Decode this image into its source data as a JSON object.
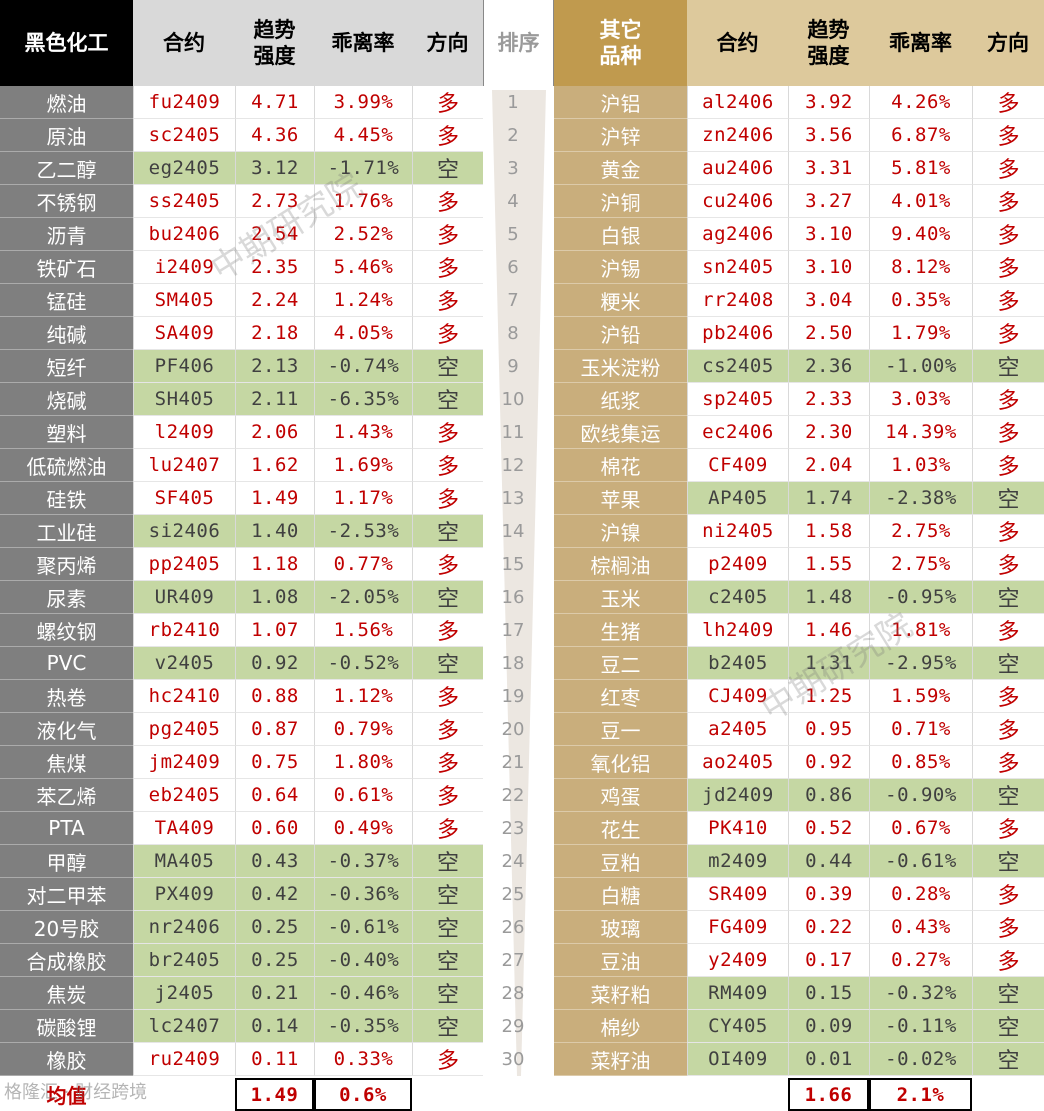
{
  "headers": {
    "left_title": "黑色化工",
    "contract": "合约",
    "trend": "趋势\n强度",
    "deviation": "乖离率",
    "direction": "方向",
    "rank": "排序",
    "right_title": "其它\n品种",
    "contract_r": "合约",
    "trend_r": "趋势\n强度",
    "deviation_r": "乖离率",
    "direction_r": "方向"
  },
  "colors": {
    "left_header_bg": "#000000",
    "left_name_bg": "#7f7f7f",
    "right_header_bg": "#c09a4e",
    "right_name_bg": "#c9ae7c",
    "short_bg": "#c5d7a3",
    "text_red": "#c00000"
  },
  "ranks": [
    "1",
    "2",
    "3",
    "4",
    "5",
    "6",
    "7",
    "8",
    "9",
    "10",
    "11",
    "12",
    "13",
    "14",
    "15",
    "16",
    "17",
    "18",
    "19",
    "20",
    "21",
    "22",
    "23",
    "24",
    "25",
    "26",
    "27",
    "28",
    "29",
    "30"
  ],
  "left_rows": [
    {
      "name": "燃油",
      "contract": "fu2409",
      "trend": "4.71",
      "dev": "3.99%",
      "dir": "多"
    },
    {
      "name": "原油",
      "contract": "sc2405",
      "trend": "4.36",
      "dev": "4.45%",
      "dir": "多"
    },
    {
      "name": "乙二醇",
      "contract": "eg2405",
      "trend": "3.12",
      "dev": "-1.71%",
      "dir": "空"
    },
    {
      "name": "不锈钢",
      "contract": "ss2405",
      "trend": "2.73",
      "dev": "1.76%",
      "dir": "多"
    },
    {
      "name": "沥青",
      "contract": "bu2406",
      "trend": "2.54",
      "dev": "2.52%",
      "dir": "多"
    },
    {
      "name": "铁矿石",
      "contract": "i2409",
      "trend": "2.35",
      "dev": "5.46%",
      "dir": "多"
    },
    {
      "name": "锰硅",
      "contract": "SM405",
      "trend": "2.24",
      "dev": "1.24%",
      "dir": "多"
    },
    {
      "name": "纯碱",
      "contract": "SA409",
      "trend": "2.18",
      "dev": "4.05%",
      "dir": "多"
    },
    {
      "name": "短纤",
      "contract": "PF406",
      "trend": "2.13",
      "dev": "-0.74%",
      "dir": "空"
    },
    {
      "name": "烧碱",
      "contract": "SH405",
      "trend": "2.11",
      "dev": "-6.35%",
      "dir": "空"
    },
    {
      "name": "塑料",
      "contract": "l2409",
      "trend": "2.06",
      "dev": "1.43%",
      "dir": "多"
    },
    {
      "name": "低硫燃油",
      "contract": "lu2407",
      "trend": "1.62",
      "dev": "1.69%",
      "dir": "多"
    },
    {
      "name": "硅铁",
      "contract": "SF405",
      "trend": "1.49",
      "dev": "1.17%",
      "dir": "多"
    },
    {
      "name": "工业硅",
      "contract": "si2406",
      "trend": "1.40",
      "dev": "-2.53%",
      "dir": "空"
    },
    {
      "name": "聚丙烯",
      "contract": "pp2405",
      "trend": "1.18",
      "dev": "0.77%",
      "dir": "多"
    },
    {
      "name": "尿素",
      "contract": "UR409",
      "trend": "1.08",
      "dev": "-2.05%",
      "dir": "空"
    },
    {
      "name": "螺纹钢",
      "contract": "rb2410",
      "trend": "1.07",
      "dev": "1.56%",
      "dir": "多"
    },
    {
      "name": "PVC",
      "contract": "v2405",
      "trend": "0.92",
      "dev": "-0.52%",
      "dir": "空"
    },
    {
      "name": "热卷",
      "contract": "hc2410",
      "trend": "0.88",
      "dev": "1.12%",
      "dir": "多"
    },
    {
      "name": "液化气",
      "contract": "pg2405",
      "trend": "0.87",
      "dev": "0.79%",
      "dir": "多"
    },
    {
      "name": "焦煤",
      "contract": "jm2409",
      "trend": "0.75",
      "dev": "1.80%",
      "dir": "多"
    },
    {
      "name": "苯乙烯",
      "contract": "eb2405",
      "trend": "0.64",
      "dev": "0.61%",
      "dir": "多"
    },
    {
      "name": "PTA",
      "contract": "TA409",
      "trend": "0.60",
      "dev": "0.49%",
      "dir": "多"
    },
    {
      "name": "甲醇",
      "contract": "MA405",
      "trend": "0.43",
      "dev": "-0.37%",
      "dir": "空"
    },
    {
      "name": "对二甲苯",
      "contract": "PX409",
      "trend": "0.42",
      "dev": "-0.36%",
      "dir": "空"
    },
    {
      "name": "20号胶",
      "contract": "nr2406",
      "trend": "0.25",
      "dev": "-0.61%",
      "dir": "空"
    },
    {
      "name": "合成橡胶",
      "contract": "br2405",
      "trend": "0.25",
      "dev": "-0.40%",
      "dir": "空"
    },
    {
      "name": "焦炭",
      "contract": "j2405",
      "trend": "0.21",
      "dev": "-0.46%",
      "dir": "空"
    },
    {
      "name": "碳酸锂",
      "contract": "lc2407",
      "trend": "0.14",
      "dev": "-0.35%",
      "dir": "空"
    },
    {
      "name": "橡胶",
      "contract": "ru2409",
      "trend": "0.11",
      "dev": "0.33%",
      "dir": "多"
    }
  ],
  "right_rows": [
    {
      "name": "沪铝",
      "contract": "al2406",
      "trend": "3.92",
      "dev": "4.26%",
      "dir": "多"
    },
    {
      "name": "沪锌",
      "contract": "zn2406",
      "trend": "3.56",
      "dev": "6.87%",
      "dir": "多"
    },
    {
      "name": "黄金",
      "contract": "au2406",
      "trend": "3.31",
      "dev": "5.81%",
      "dir": "多"
    },
    {
      "name": "沪铜",
      "contract": "cu2406",
      "trend": "3.27",
      "dev": "4.01%",
      "dir": "多"
    },
    {
      "name": "白银",
      "contract": "ag2406",
      "trend": "3.10",
      "dev": "9.40%",
      "dir": "多"
    },
    {
      "name": "沪锡",
      "contract": "sn2405",
      "trend": "3.10",
      "dev": "8.12%",
      "dir": "多"
    },
    {
      "name": "粳米",
      "contract": "rr2408",
      "trend": "3.04",
      "dev": "0.35%",
      "dir": "多"
    },
    {
      "name": "沪铅",
      "contract": "pb2406",
      "trend": "2.50",
      "dev": "1.79%",
      "dir": "多"
    },
    {
      "name": "玉米淀粉",
      "contract": "cs2405",
      "trend": "2.36",
      "dev": "-1.00%",
      "dir": "空"
    },
    {
      "name": "纸浆",
      "contract": "sp2405",
      "trend": "2.33",
      "dev": "3.03%",
      "dir": "多"
    },
    {
      "name": "欧线集运",
      "contract": "ec2406",
      "trend": "2.30",
      "dev": "14.39%",
      "dir": "多"
    },
    {
      "name": "棉花",
      "contract": "CF409",
      "trend": "2.04",
      "dev": "1.03%",
      "dir": "多"
    },
    {
      "name": "苹果",
      "contract": "AP405",
      "trend": "1.74",
      "dev": "-2.38%",
      "dir": "空"
    },
    {
      "name": "沪镍",
      "contract": "ni2405",
      "trend": "1.58",
      "dev": "2.75%",
      "dir": "多"
    },
    {
      "name": "棕榈油",
      "contract": "p2409",
      "trend": "1.55",
      "dev": "2.75%",
      "dir": "多"
    },
    {
      "name": "玉米",
      "contract": "c2405",
      "trend": "1.48",
      "dev": "-0.95%",
      "dir": "空"
    },
    {
      "name": "生猪",
      "contract": "lh2409",
      "trend": "1.46",
      "dev": "1.81%",
      "dir": "多"
    },
    {
      "name": "豆二",
      "contract": "b2405",
      "trend": "1.31",
      "dev": "-2.95%",
      "dir": "空"
    },
    {
      "name": "红枣",
      "contract": "CJ409",
      "trend": "1.25",
      "dev": "1.59%",
      "dir": "多"
    },
    {
      "name": "豆一",
      "contract": "a2405",
      "trend": "0.95",
      "dev": "0.71%",
      "dir": "多"
    },
    {
      "name": "氧化铝",
      "contract": "ao2405",
      "trend": "0.92",
      "dev": "0.85%",
      "dir": "多"
    },
    {
      "name": "鸡蛋",
      "contract": "jd2409",
      "trend": "0.86",
      "dev": "-0.90%",
      "dir": "空"
    },
    {
      "name": "花生",
      "contract": "PK410",
      "trend": "0.52",
      "dev": "0.67%",
      "dir": "多"
    },
    {
      "name": "豆粕",
      "contract": "m2409",
      "trend": "0.44",
      "dev": "-0.61%",
      "dir": "空"
    },
    {
      "name": "白糖",
      "contract": "SR409",
      "trend": "0.39",
      "dev": "0.28%",
      "dir": "多"
    },
    {
      "name": "玻璃",
      "contract": "FG409",
      "trend": "0.22",
      "dev": "0.43%",
      "dir": "多"
    },
    {
      "name": "豆油",
      "contract": "y2409",
      "trend": "0.17",
      "dev": "0.27%",
      "dir": "多"
    },
    {
      "name": "菜籽粕",
      "contract": "RM409",
      "trend": "0.15",
      "dev": "-0.32%",
      "dir": "空"
    },
    {
      "name": "棉纱",
      "contract": "CY405",
      "trend": "0.09",
      "dev": "-0.11%",
      "dir": "空"
    },
    {
      "name": "菜籽油",
      "contract": "OI409",
      "trend": "0.01",
      "dev": "-0.02%",
      "dir": "空"
    }
  ],
  "average": {
    "label": "均值",
    "left_trend": "1.49",
    "left_dev": "0.6%",
    "right_trend": "1.66",
    "right_dev": "2.1%"
  },
  "watermarks": {
    "text": "中期研究院",
    "footer": "格隆汇 · 财经跨境"
  }
}
